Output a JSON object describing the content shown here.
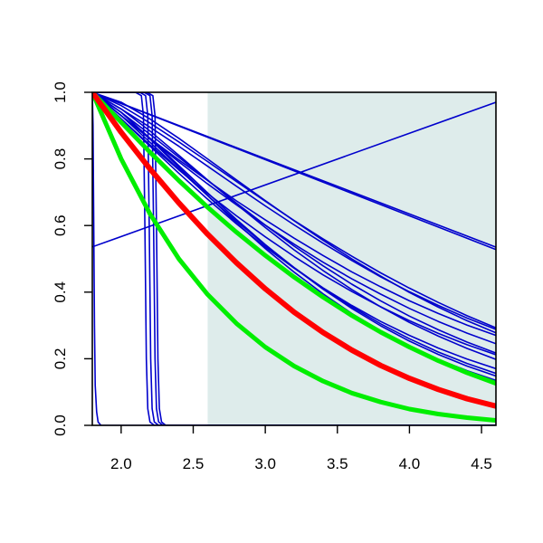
{
  "chart_data": {
    "type": "line",
    "title": "",
    "xlabel": "",
    "ylabel": "",
    "xlim": [
      1.8,
      4.6
    ],
    "ylim": [
      0.0,
      1.0
    ],
    "x_ticks": [
      2.0,
      2.5,
      3.0,
      3.5,
      4.0,
      4.5
    ],
    "x_tick_labels": [
      "2.0",
      "2.5",
      "3.0",
      "3.5",
      "4.0",
      "4.5"
    ],
    "y_ticks": [
      0.0,
      0.2,
      0.4,
      0.6,
      0.8,
      1.0
    ],
    "y_tick_labels": [
      "0.0",
      "0.2",
      "0.4",
      "0.6",
      "0.8",
      "1.0"
    ],
    "grid": false,
    "legend": "none",
    "shaded_region": {
      "x_from": 2.6,
      "x_to": 4.6,
      "color": "#deeceb"
    },
    "colors": {
      "blue": "#0000cc",
      "red": "#ff0000",
      "green": "#00ee00"
    },
    "series": [
      {
        "color": "#0000cc",
        "width": 1.6,
        "x": [
          1.8,
          4.6
        ],
        "y": [
          0.536,
          0.97
        ]
      },
      {
        "color": "#0000cc",
        "width": 1.6,
        "x": [
          1.8,
          4.6
        ],
        "y": [
          1.0,
          0.535
        ]
      },
      {
        "color": "#0000cc",
        "width": 1.6,
        "x": [
          1.8,
          4.6
        ],
        "y": [
          1.0,
          0.528
        ]
      },
      {
        "color": "#0000cc",
        "width": 1.6,
        "x": [
          1.8,
          2.0,
          2.2,
          2.4,
          2.6,
          2.8,
          3.0,
          3.2,
          3.4,
          3.6,
          3.8,
          4.0,
          4.2,
          4.4,
          4.6
        ],
        "y": [
          1.0,
          0.93,
          0.862,
          0.797,
          0.735,
          0.674,
          0.617,
          0.562,
          0.51,
          0.461,
          0.416,
          0.374,
          0.336,
          0.301,
          0.27
        ]
      },
      {
        "color": "#0000cc",
        "width": 1.6,
        "x": [
          1.8,
          2.0,
          2.2,
          2.4,
          2.6,
          2.8,
          3.0,
          3.2,
          3.4,
          3.6,
          3.8,
          4.0,
          4.2,
          4.4,
          4.6
        ],
        "y": [
          1.0,
          0.95,
          0.895,
          0.838,
          0.778,
          0.718,
          0.659,
          0.602,
          0.547,
          0.495,
          0.446,
          0.401,
          0.36,
          0.322,
          0.288
        ]
      },
      {
        "color": "#0000cc",
        "width": 1.6,
        "x": [
          1.8,
          2.0,
          2.2,
          2.4,
          2.6,
          2.8,
          3.0,
          3.2,
          3.4,
          3.6,
          3.8,
          4.0,
          4.2,
          4.4,
          4.6
        ],
        "y": [
          1.0,
          0.96,
          0.908,
          0.851,
          0.792,
          0.732,
          0.673,
          0.615,
          0.56,
          0.508,
          0.458,
          0.412,
          0.369,
          0.329,
          0.293
        ]
      },
      {
        "color": "#0000cc",
        "width": 1.6,
        "x": [
          1.8,
          2.0,
          2.2,
          2.4,
          2.6,
          2.8,
          3.0,
          3.2,
          3.4,
          3.6,
          3.8,
          4.0,
          4.2,
          4.4,
          4.6
        ],
        "y": [
          1.0,
          0.93,
          0.86,
          0.791,
          0.725,
          0.662,
          0.601,
          0.544,
          0.49,
          0.44,
          0.394,
          0.351,
          0.312,
          0.277,
          0.245
        ]
      },
      {
        "color": "#0000cc",
        "width": 1.6,
        "x": [
          1.8,
          2.0,
          2.2,
          2.4,
          2.6,
          2.8,
          3.0,
          3.2,
          3.4,
          3.6,
          3.8,
          4.0,
          4.2,
          4.4,
          4.6
        ],
        "y": [
          1.0,
          0.97,
          0.92,
          0.862,
          0.8,
          0.737,
          0.675,
          0.614,
          0.556,
          0.5,
          0.448,
          0.399,
          0.355,
          0.314,
          0.278
        ]
      },
      {
        "color": "#0000cc",
        "width": 1.6,
        "x": [
          1.8,
          2.0,
          2.2,
          2.4,
          2.6,
          2.8,
          3.0,
          3.2,
          3.4,
          3.6,
          3.8,
          4.0,
          4.2,
          4.4,
          4.6
        ],
        "y": [
          1.0,
          0.92,
          0.842,
          0.767,
          0.696,
          0.629,
          0.566,
          0.507,
          0.452,
          0.402,
          0.356,
          0.314,
          0.276,
          0.242,
          0.212
        ]
      },
      {
        "color": "#0000cc",
        "width": 1.6,
        "x": [
          1.8,
          2.0,
          2.2,
          2.4,
          2.6,
          2.8,
          3.0,
          3.2,
          3.4,
          3.6,
          3.8,
          4.0,
          4.2,
          4.4,
          4.6
        ],
        "y": [
          1.0,
          0.94,
          0.874,
          0.805,
          0.736,
          0.667,
          0.601,
          0.538,
          0.479,
          0.424,
          0.374,
          0.328,
          0.287,
          0.25,
          0.217
        ]
      },
      {
        "color": "#0000cc",
        "width": 1.6,
        "x": [
          1.8,
          2.0,
          2.2,
          2.4,
          2.6,
          2.8,
          3.0,
          3.2,
          3.4,
          3.6,
          3.8,
          4.0,
          4.2,
          4.4,
          4.6
        ],
        "y": [
          1.0,
          0.95,
          0.884,
          0.811,
          0.737,
          0.664,
          0.594,
          0.527,
          0.465,
          0.408,
          0.356,
          0.309,
          0.268,
          0.231,
          0.198
        ]
      },
      {
        "color": "#0000cc",
        "width": 1.6,
        "x": [
          1.8,
          2.0,
          2.2,
          2.4,
          2.6,
          2.8,
          3.0,
          3.2,
          3.4,
          3.6,
          3.8,
          4.0,
          4.2,
          4.4,
          4.6
        ],
        "y": [
          1.0,
          0.92,
          0.838,
          0.757,
          0.679,
          0.605,
          0.536,
          0.472,
          0.413,
          0.36,
          0.312,
          0.27,
          0.232,
          0.199,
          0.17
        ]
      },
      {
        "color": "#0000cc",
        "width": 1.6,
        "x": [
          1.8,
          2.0,
          2.2,
          2.4,
          2.6,
          2.8,
          3.0,
          3.2,
          3.4,
          3.6,
          3.8,
          4.0,
          4.2,
          4.4,
          4.6
        ],
        "y": [
          1.0,
          0.93,
          0.85,
          0.769,
          0.69,
          0.613,
          0.541,
          0.474,
          0.412,
          0.356,
          0.305,
          0.26,
          0.22,
          0.186,
          0.156
        ]
      },
      {
        "color": "#0000cc",
        "width": 1.6,
        "x": [
          1.8,
          2.0,
          2.2,
          2.4,
          2.6,
          2.8,
          3.0,
          3.2,
          3.4,
          3.6,
          3.8,
          4.0,
          4.2,
          4.4,
          4.6
        ],
        "y": [
          1.0,
          0.94,
          0.862,
          0.78,
          0.698,
          0.618,
          0.543,
          0.473,
          0.409,
          0.351,
          0.299,
          0.253,
          0.213,
          0.178,
          0.148
        ]
      },
      {
        "color": "#0000cc",
        "width": 1.6,
        "x": [
          1.8,
          2.0,
          2.2,
          2.4,
          2.6,
          2.8,
          3.0,
          3.2,
          3.4,
          3.6,
          3.8,
          4.0,
          4.2,
          4.4,
          4.6
        ],
        "y": [
          1.0,
          0.94,
          0.86,
          0.775,
          0.69,
          0.608,
          0.531,
          0.46,
          0.395,
          0.336,
          0.284,
          0.238,
          0.198,
          0.164,
          0.135
        ]
      },
      {
        "color": "#0000cc",
        "width": 1.6,
        "x": [
          1.8,
          1.805,
          1.81,
          1.815,
          1.82,
          1.83,
          1.84,
          1.86,
          1.9,
          4.6
        ],
        "y": [
          1.0,
          0.9,
          0.6,
          0.3,
          0.12,
          0.04,
          0.01,
          0.0,
          0.0,
          0.0
        ]
      },
      {
        "color": "#0000cc",
        "width": 1.6,
        "x": [
          1.8,
          2.1,
          2.14,
          2.155,
          2.165,
          2.175,
          2.185,
          2.2,
          2.23,
          4.6
        ],
        "y": [
          1.0,
          1.0,
          0.99,
          0.93,
          0.6,
          0.2,
          0.05,
          0.01,
          0.0,
          0.0
        ]
      },
      {
        "color": "#0000cc",
        "width": 1.6,
        "x": [
          1.8,
          2.13,
          2.17,
          2.185,
          2.195,
          2.205,
          2.215,
          2.23,
          2.26,
          4.6
        ],
        "y": [
          1.0,
          1.0,
          0.99,
          0.93,
          0.6,
          0.2,
          0.05,
          0.01,
          0.0,
          0.0
        ]
      },
      {
        "color": "#0000cc",
        "width": 1.6,
        "x": [
          1.8,
          2.16,
          2.2,
          2.215,
          2.225,
          2.235,
          2.245,
          2.26,
          2.29,
          4.6
        ],
        "y": [
          1.0,
          1.0,
          0.99,
          0.93,
          0.6,
          0.2,
          0.05,
          0.01,
          0.0,
          0.0
        ]
      },
      {
        "color": "#0000cc",
        "width": 1.6,
        "x": [
          1.8,
          2.18,
          2.22,
          2.235,
          2.245,
          2.255,
          2.265,
          2.28,
          2.31,
          4.6
        ],
        "y": [
          1.0,
          1.0,
          0.99,
          0.93,
          0.6,
          0.2,
          0.05,
          0.01,
          0.0,
          0.0
        ]
      },
      {
        "color": "#00ee00",
        "width": 5,
        "x": [
          1.8,
          2.0,
          2.2,
          2.4,
          2.6,
          2.8,
          3.0,
          3.2,
          3.4,
          3.6,
          3.8,
          4.0,
          4.2,
          4.4,
          4.6
        ],
        "y": [
          1.0,
          0.91,
          0.82,
          0.735,
          0.655,
          0.58,
          0.51,
          0.445,
          0.385,
          0.33,
          0.28,
          0.235,
          0.194,
          0.158,
          0.126
        ]
      },
      {
        "color": "#00ee00",
        "width": 5,
        "x": [
          1.8,
          2.0,
          2.2,
          2.4,
          2.6,
          2.8,
          3.0,
          3.2,
          3.4,
          3.6,
          3.8,
          4.0,
          4.2,
          4.4,
          4.6
        ],
        "y": [
          1.0,
          0.8,
          0.635,
          0.5,
          0.393,
          0.306,
          0.235,
          0.178,
          0.133,
          0.097,
          0.07,
          0.049,
          0.034,
          0.023,
          0.015
        ]
      },
      {
        "color": "#ff0000",
        "width": 6,
        "x": [
          1.8,
          2.0,
          2.2,
          2.4,
          2.6,
          2.8,
          3.0,
          3.2,
          3.4,
          3.6,
          3.8,
          4.0,
          4.2,
          4.4,
          4.6
        ],
        "y": [
          1.0,
          0.88,
          0.77,
          0.668,
          0.574,
          0.488,
          0.41,
          0.34,
          0.279,
          0.226,
          0.18,
          0.141,
          0.108,
          0.08,
          0.058
        ]
      }
    ]
  }
}
